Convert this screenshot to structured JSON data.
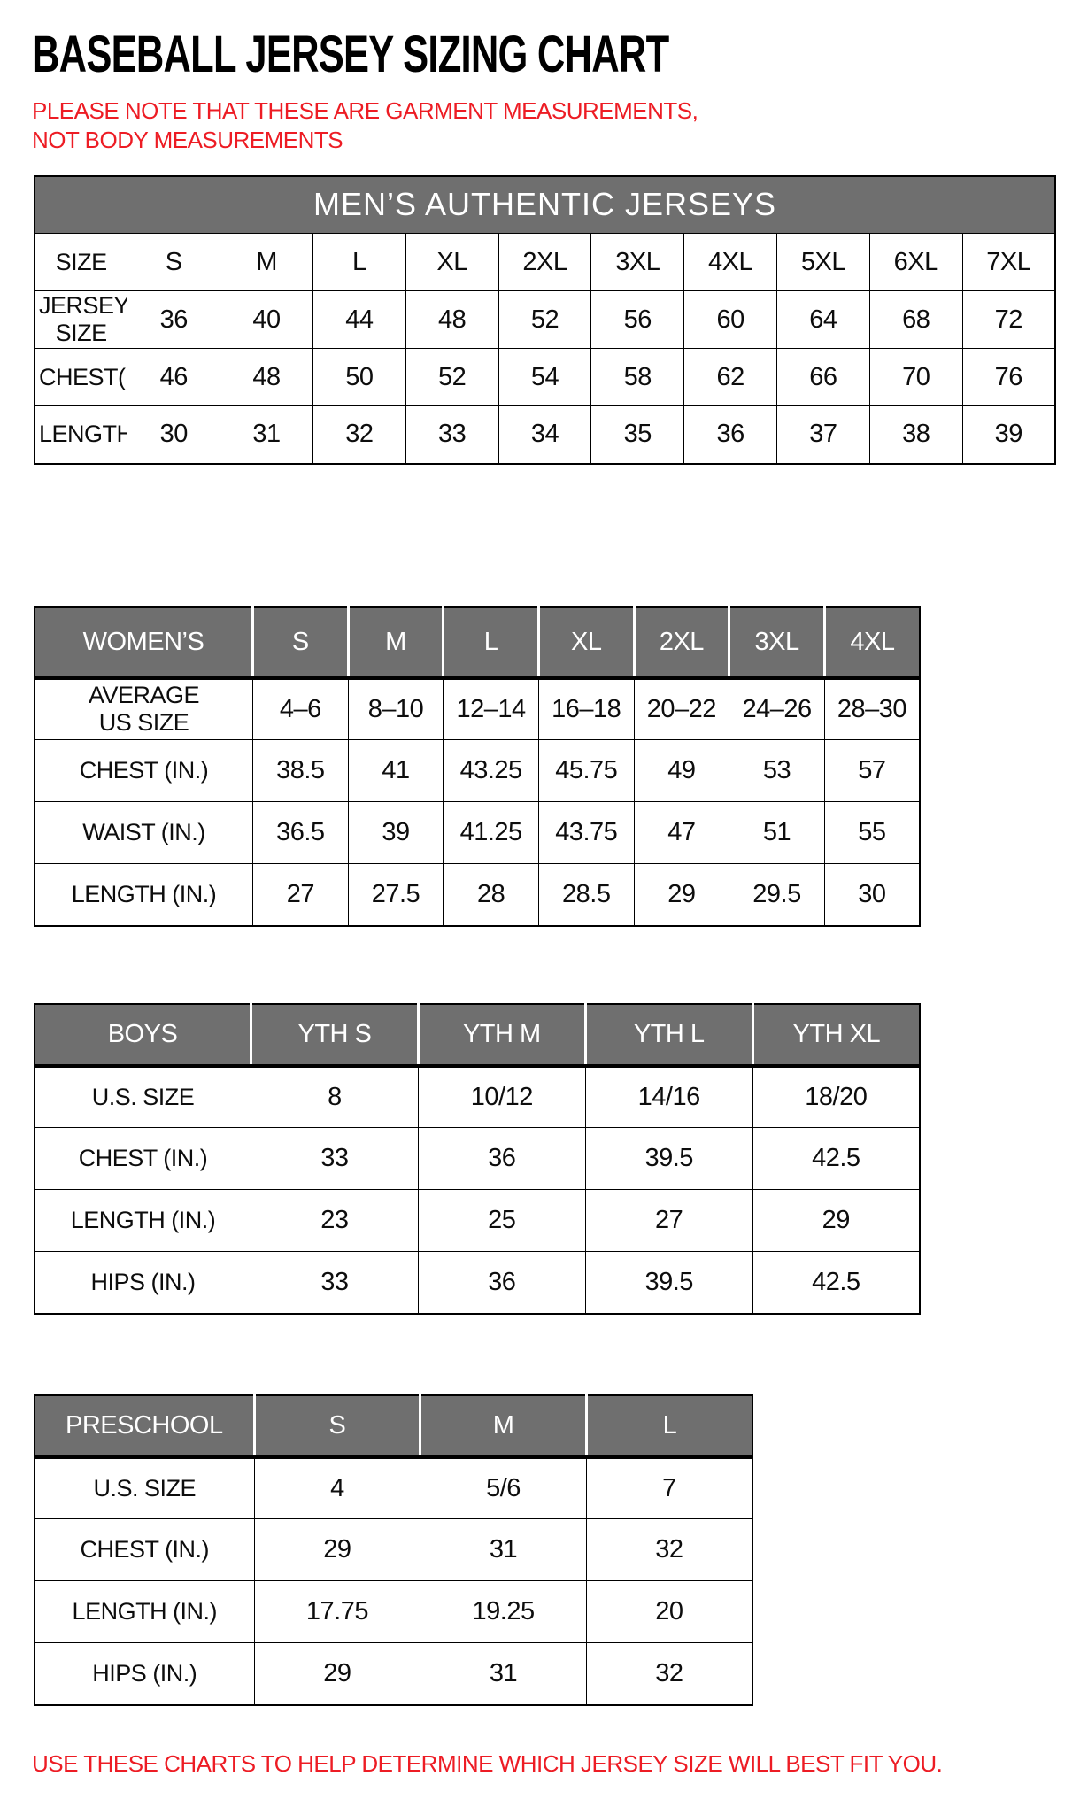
{
  "page": {
    "title": "BASEBALL JERSEY SIZING CHART",
    "note": "PLEASE NOTE THAT THESE ARE GARMENT MEASUREMENTS, NOT BODY MEASUREMENTS",
    "footer": "USE THESE CHARTS TO HELP DETERMINE WHICH JERSEY SIZE WILL BEST FIT YOU."
  },
  "colors": {
    "header_gray": "#6f6f6f",
    "accent_red": "#ed1c24",
    "border_black": "#000000"
  },
  "tables": [
    {
      "name": "mens",
      "banner": "MEN’S AUTHENTIC JERSEYS",
      "gray_header": null,
      "rows": [
        {
          "label": "SIZE",
          "cells": [
            "S",
            "M",
            "L",
            "XL",
            "2XL",
            "3XL",
            "4XL",
            "5XL",
            "6XL",
            "7XL"
          ]
        },
        {
          "label": "JERSEY SIZE",
          "cells": [
            "36",
            "40",
            "44",
            "48",
            "52",
            "56",
            "60",
            "64",
            "68",
            "72"
          ]
        },
        {
          "label": "CHEST(IN.)",
          "cells": [
            "46",
            "48",
            "50",
            "52",
            "54",
            "58",
            "62",
            "66",
            "70",
            "76"
          ]
        },
        {
          "label": "LENGTH(IN.)",
          "cells": [
            "30",
            "31",
            "32",
            "33",
            "34",
            "35",
            "36",
            "37",
            "38",
            "39"
          ]
        }
      ]
    },
    {
      "name": "womens",
      "banner": null,
      "gray_header": {
        "label": "WOMEN’S",
        "cells": [
          "S",
          "M",
          "L",
          "XL",
          "2XL",
          "3XL",
          "4XL"
        ]
      },
      "rows": [
        {
          "label": "AVERAGE\nUS SIZE",
          "cells": [
            "4–6",
            "8–10",
            "12–14",
            "16–18",
            "20–22",
            "24–26",
            "28–30"
          ]
        },
        {
          "label": "CHEST (IN.)",
          "cells": [
            "38.5",
            "41",
            "43.25",
            "45.75",
            "49",
            "53",
            "57"
          ]
        },
        {
          "label": "WAIST (IN.)",
          "cells": [
            "36.5",
            "39",
            "41.25",
            "43.75",
            "47",
            "51",
            "55"
          ]
        },
        {
          "label": "LENGTH (IN.)",
          "cells": [
            "27",
            "27.5",
            "28",
            "28.5",
            "29",
            "29.5",
            "30"
          ]
        }
      ]
    },
    {
      "name": "boys",
      "banner": null,
      "gray_header": {
        "label": "BOYS",
        "cells": [
          "YTH S",
          "YTH M",
          "YTH L",
          "YTH XL"
        ]
      },
      "rows": [
        {
          "label": "U.S. SIZE",
          "cells": [
            "8",
            "10/12",
            "14/16",
            "18/20"
          ]
        },
        {
          "label": "CHEST (IN.)",
          "cells": [
            "33",
            "36",
            "39.5",
            "42.5"
          ]
        },
        {
          "label": "LENGTH (IN.)",
          "cells": [
            "23",
            "25",
            "27",
            "29"
          ]
        },
        {
          "label": "HIPS (IN.)",
          "cells": [
            "33",
            "36",
            "39.5",
            "42.5"
          ]
        }
      ]
    },
    {
      "name": "preschool",
      "banner": null,
      "gray_header": {
        "label": "PRESCHOOL",
        "cells": [
          "S",
          "M",
          "L"
        ]
      },
      "rows": [
        {
          "label": "U.S. SIZE",
          "cells": [
            "4",
            "5/6",
            "7"
          ]
        },
        {
          "label": "CHEST (IN.)",
          "cells": [
            "29",
            "31",
            "32"
          ]
        },
        {
          "label": "LENGTH (IN.)",
          "cells": [
            "17.75",
            "19.25",
            "20"
          ]
        },
        {
          "label": "HIPS (IN.)",
          "cells": [
            "29",
            "31",
            "32"
          ]
        }
      ]
    }
  ]
}
